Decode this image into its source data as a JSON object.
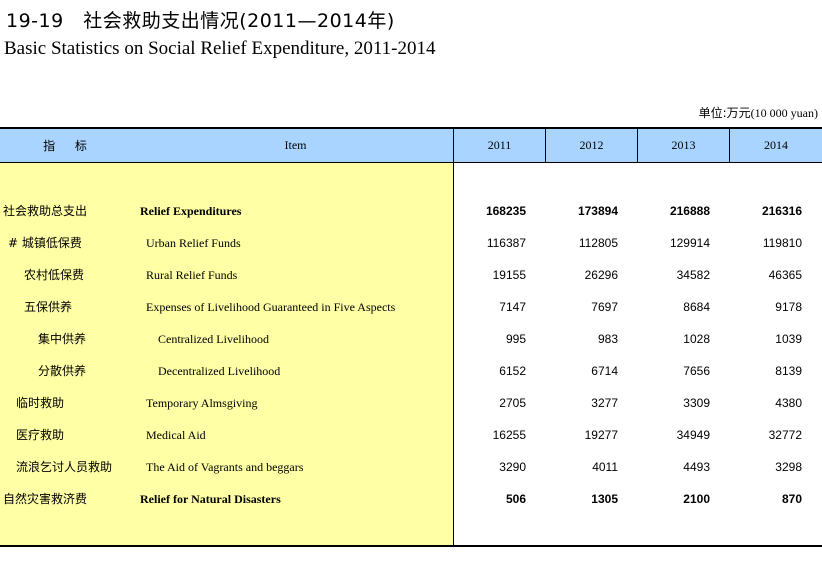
{
  "header": {
    "title_cn": "19-19　社会救助支出情况(2011—2014年)",
    "title_en": "Basic Statistics on Social Relief Expenditure, 2011-2014",
    "unit_cn": "单位:万元",
    "unit_en": "(10 000 yuan)"
  },
  "table": {
    "columns": {
      "indicator": "指 标",
      "item": "Item",
      "years": [
        "2011",
        "2012",
        "2013",
        "2014"
      ]
    },
    "rows": [
      {
        "cn": "社会救助总支出",
        "en": "Relief Expenditures",
        "values": [
          "168235",
          "173894",
          "216888",
          "216316"
        ]
      },
      {
        "cn": "# 城镇低保费",
        "en": "Urban Relief Funds",
        "values": [
          "116387",
          "112805",
          "129914",
          "119810"
        ]
      },
      {
        "cn": "农村低保费",
        "en": "Rural Relief Funds",
        "values": [
          "19155",
          "26296",
          "34582",
          "46365"
        ]
      },
      {
        "cn": "五保供养",
        "en": "Expenses of Livelihood Guaranteed in Five Aspects",
        "values": [
          "7147",
          "7697",
          "8684",
          "9178"
        ]
      },
      {
        "cn": "集中供养",
        "en": "Centralized Livelihood",
        "values": [
          "995",
          "983",
          "1028",
          "1039"
        ]
      },
      {
        "cn": "分散供养",
        "en": "Decentralized Livelihood",
        "values": [
          "6152",
          "6714",
          "7656",
          "8139"
        ]
      },
      {
        "cn": "临时救助",
        "en": "Temporary Almsgiving",
        "values": [
          "2705",
          "3277",
          "3309",
          "4380"
        ]
      },
      {
        "cn": "医疗救助",
        "en": "Medical Aid",
        "values": [
          "16255",
          "19277",
          "34949",
          "32772"
        ]
      },
      {
        "cn": "流浪乞讨人员救助",
        "en": "The Aid of Vagrants and beggars",
        "values": [
          "3290",
          "4011",
          "4493",
          "3298"
        ]
      },
      {
        "cn": "自然灾害救济费",
        "en": "Relief for Natural Disasters",
        "values": [
          "506",
          "1305",
          "2100",
          "870"
        ]
      }
    ]
  }
}
